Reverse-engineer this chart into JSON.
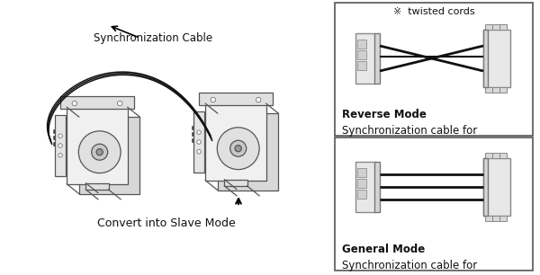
{
  "bg_color": "#ffffff",
  "border_color": "#333333",
  "line_color": "#111111",
  "gray_color": "#cccccc",
  "light_gray": "#e8e8e8",
  "dark_gray": "#555555",
  "text_color": "#111111",
  "title_convert": "Convert into Slave Mode",
  "title_sync_cable": "Synchronization Cable",
  "label_general_title": "Synchronization cable for",
  "label_general_mode": "General Mode",
  "label_reverse_title": "Synchronization cable for",
  "label_reverse_mode": "Reverse Mode",
  "label_twisted": "※  twisted cords",
  "arrow_text": "▼"
}
